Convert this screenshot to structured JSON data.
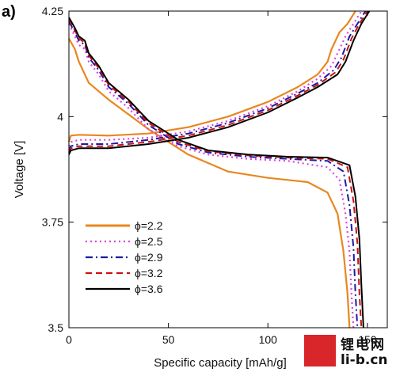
{
  "panel_label": "a)",
  "watermark": {
    "top": "锂电网",
    "bottom": "li-b.cn"
  },
  "chart_data": {
    "type": "line",
    "title": "",
    "xlabel": "Specific capacity [mAh/g]",
    "ylabel": "Voltage [V]",
    "xlim": [
      0,
      160
    ],
    "ylim": [
      3.5,
      4.25
    ],
    "xticks": [
      0,
      50,
      100,
      150
    ],
    "yticks": [
      3.5,
      3.75,
      4,
      4.25
    ],
    "xtick_labels": [
      "0",
      "50",
      "100",
      "150"
    ],
    "ytick_labels": [
      "3.5",
      "3.75",
      "4",
      "4.25"
    ],
    "grid": false,
    "legend_position": "bottom-left",
    "series": [
      {
        "name": "ϕ=2.2",
        "color": "#e8871e",
        "dash": "solid",
        "charge": [
          [
            0,
            3.94
          ],
          [
            1,
            3.955
          ],
          [
            5,
            3.957
          ],
          [
            20,
            3.955
          ],
          [
            40,
            3.96
          ],
          [
            60,
            3.975
          ],
          [
            80,
            4.0
          ],
          [
            100,
            4.035
          ],
          [
            115,
            4.07
          ],
          [
            125,
            4.1
          ],
          [
            130,
            4.13
          ],
          [
            132,
            4.16
          ],
          [
            134,
            4.18
          ],
          [
            136,
            4.2
          ],
          [
            140,
            4.22
          ],
          [
            144,
            4.25
          ]
        ],
        "discharge": [
          [
            0,
            4.185
          ],
          [
            3,
            4.16
          ],
          [
            5,
            4.13
          ],
          [
            10,
            4.08
          ],
          [
            20,
            4.04
          ],
          [
            40,
            3.97
          ],
          [
            60,
            3.91
          ],
          [
            80,
            3.87
          ],
          [
            100,
            3.855
          ],
          [
            120,
            3.845
          ],
          [
            130,
            3.82
          ],
          [
            135,
            3.77
          ],
          [
            138,
            3.68
          ],
          [
            140,
            3.58
          ],
          [
            141,
            3.5
          ]
        ]
      },
      {
        "name": "ϕ=2.5",
        "color": "#e040e0",
        "dash": "dot",
        "charge": [
          [
            0,
            3.93
          ],
          [
            1,
            3.94
          ],
          [
            5,
            3.945
          ],
          [
            20,
            3.945
          ],
          [
            40,
            3.95
          ],
          [
            60,
            3.965
          ],
          [
            80,
            3.99
          ],
          [
            100,
            4.025
          ],
          [
            115,
            4.06
          ],
          [
            125,
            4.09
          ],
          [
            132,
            4.12
          ],
          [
            135,
            4.15
          ],
          [
            137,
            4.17
          ],
          [
            139,
            4.19
          ],
          [
            143,
            4.22
          ],
          [
            147,
            4.25
          ]
        ],
        "discharge": [
          [
            0,
            4.22
          ],
          [
            3,
            4.19
          ],
          [
            5,
            4.17
          ],
          [
            8,
            4.16
          ],
          [
            10,
            4.13
          ],
          [
            15,
            4.1
          ],
          [
            20,
            4.06
          ],
          [
            30,
            4.02
          ],
          [
            40,
            3.97
          ],
          [
            55,
            3.93
          ],
          [
            70,
            3.91
          ],
          [
            90,
            3.9
          ],
          [
            110,
            3.895
          ],
          [
            130,
            3.88
          ],
          [
            136,
            3.85
          ],
          [
            139,
            3.77
          ],
          [
            141,
            3.68
          ],
          [
            142,
            3.58
          ],
          [
            143,
            3.5
          ]
        ]
      },
      {
        "name": "ϕ=2.9",
        "color": "#1a1aa8",
        "dash": "dashdot",
        "charge": [
          [
            0,
            3.92
          ],
          [
            1,
            3.93
          ],
          [
            5,
            3.935
          ],
          [
            20,
            3.935
          ],
          [
            40,
            3.945
          ],
          [
            60,
            3.96
          ],
          [
            80,
            3.985
          ],
          [
            100,
            4.02
          ],
          [
            115,
            4.055
          ],
          [
            125,
            4.08
          ],
          [
            133,
            4.11
          ],
          [
            137,
            4.14
          ],
          [
            139,
            4.165
          ],
          [
            141,
            4.19
          ],
          [
            145,
            4.22
          ],
          [
            149,
            4.25
          ]
        ],
        "discharge": [
          [
            0,
            4.225
          ],
          [
            3,
            4.2
          ],
          [
            5,
            4.18
          ],
          [
            8,
            4.17
          ],
          [
            10,
            4.14
          ],
          [
            15,
            4.11
          ],
          [
            20,
            4.07
          ],
          [
            30,
            4.03
          ],
          [
            40,
            3.98
          ],
          [
            55,
            3.935
          ],
          [
            70,
            3.915
          ],
          [
            90,
            3.905
          ],
          [
            110,
            3.9
          ],
          [
            130,
            3.895
          ],
          [
            138,
            3.87
          ],
          [
            141,
            3.79
          ],
          [
            143,
            3.69
          ],
          [
            144,
            3.58
          ],
          [
            145,
            3.5
          ]
        ]
      },
      {
        "name": "ϕ=3.2",
        "color": "#cc1111",
        "dash": "dash",
        "charge": [
          [
            0,
            3.915
          ],
          [
            1,
            3.925
          ],
          [
            5,
            3.93
          ],
          [
            20,
            3.93
          ],
          [
            40,
            3.94
          ],
          [
            60,
            3.955
          ],
          [
            80,
            3.98
          ],
          [
            100,
            4.015
          ],
          [
            115,
            4.05
          ],
          [
            125,
            4.075
          ],
          [
            134,
            4.105
          ],
          [
            138,
            4.135
          ],
          [
            140,
            4.16
          ],
          [
            142,
            4.185
          ],
          [
            146,
            4.22
          ],
          [
            150,
            4.25
          ]
        ],
        "discharge": [
          [
            0,
            4.23
          ],
          [
            3,
            4.205
          ],
          [
            5,
            4.185
          ],
          [
            8,
            4.175
          ],
          [
            10,
            4.145
          ],
          [
            15,
            4.115
          ],
          [
            20,
            4.075
          ],
          [
            30,
            4.035
          ],
          [
            40,
            3.985
          ],
          [
            55,
            3.94
          ],
          [
            70,
            3.918
          ],
          [
            90,
            3.908
          ],
          [
            110,
            3.903
          ],
          [
            130,
            3.9
          ],
          [
            140,
            3.88
          ],
          [
            143,
            3.8
          ],
          [
            145,
            3.7
          ],
          [
            146,
            3.58
          ],
          [
            147,
            3.5
          ]
        ]
      },
      {
        "name": "ϕ=3.6",
        "color": "#000000",
        "dash": "solid",
        "charge": [
          [
            0,
            3.91
          ],
          [
            1,
            3.92
          ],
          [
            5,
            3.925
          ],
          [
            20,
            3.925
          ],
          [
            40,
            3.935
          ],
          [
            60,
            3.95
          ],
          [
            80,
            3.975
          ],
          [
            100,
            4.01
          ],
          [
            115,
            4.045
          ],
          [
            125,
            4.07
          ],
          [
            135,
            4.1
          ],
          [
            139,
            4.13
          ],
          [
            141,
            4.155
          ],
          [
            143,
            4.18
          ],
          [
            147,
            4.22
          ],
          [
            151,
            4.25
          ]
        ],
        "discharge": [
          [
            0,
            4.235
          ],
          [
            3,
            4.21
          ],
          [
            5,
            4.19
          ],
          [
            8,
            4.18
          ],
          [
            10,
            4.15
          ],
          [
            15,
            4.12
          ],
          [
            20,
            4.08
          ],
          [
            30,
            4.04
          ],
          [
            40,
            3.99
          ],
          [
            55,
            3.945
          ],
          [
            70,
            3.92
          ],
          [
            90,
            3.91
          ],
          [
            110,
            3.905
          ],
          [
            130,
            3.903
          ],
          [
            141,
            3.885
          ],
          [
            144,
            3.81
          ],
          [
            146,
            3.71
          ],
          [
            147,
            3.6
          ],
          [
            148,
            3.5
          ]
        ]
      }
    ]
  }
}
